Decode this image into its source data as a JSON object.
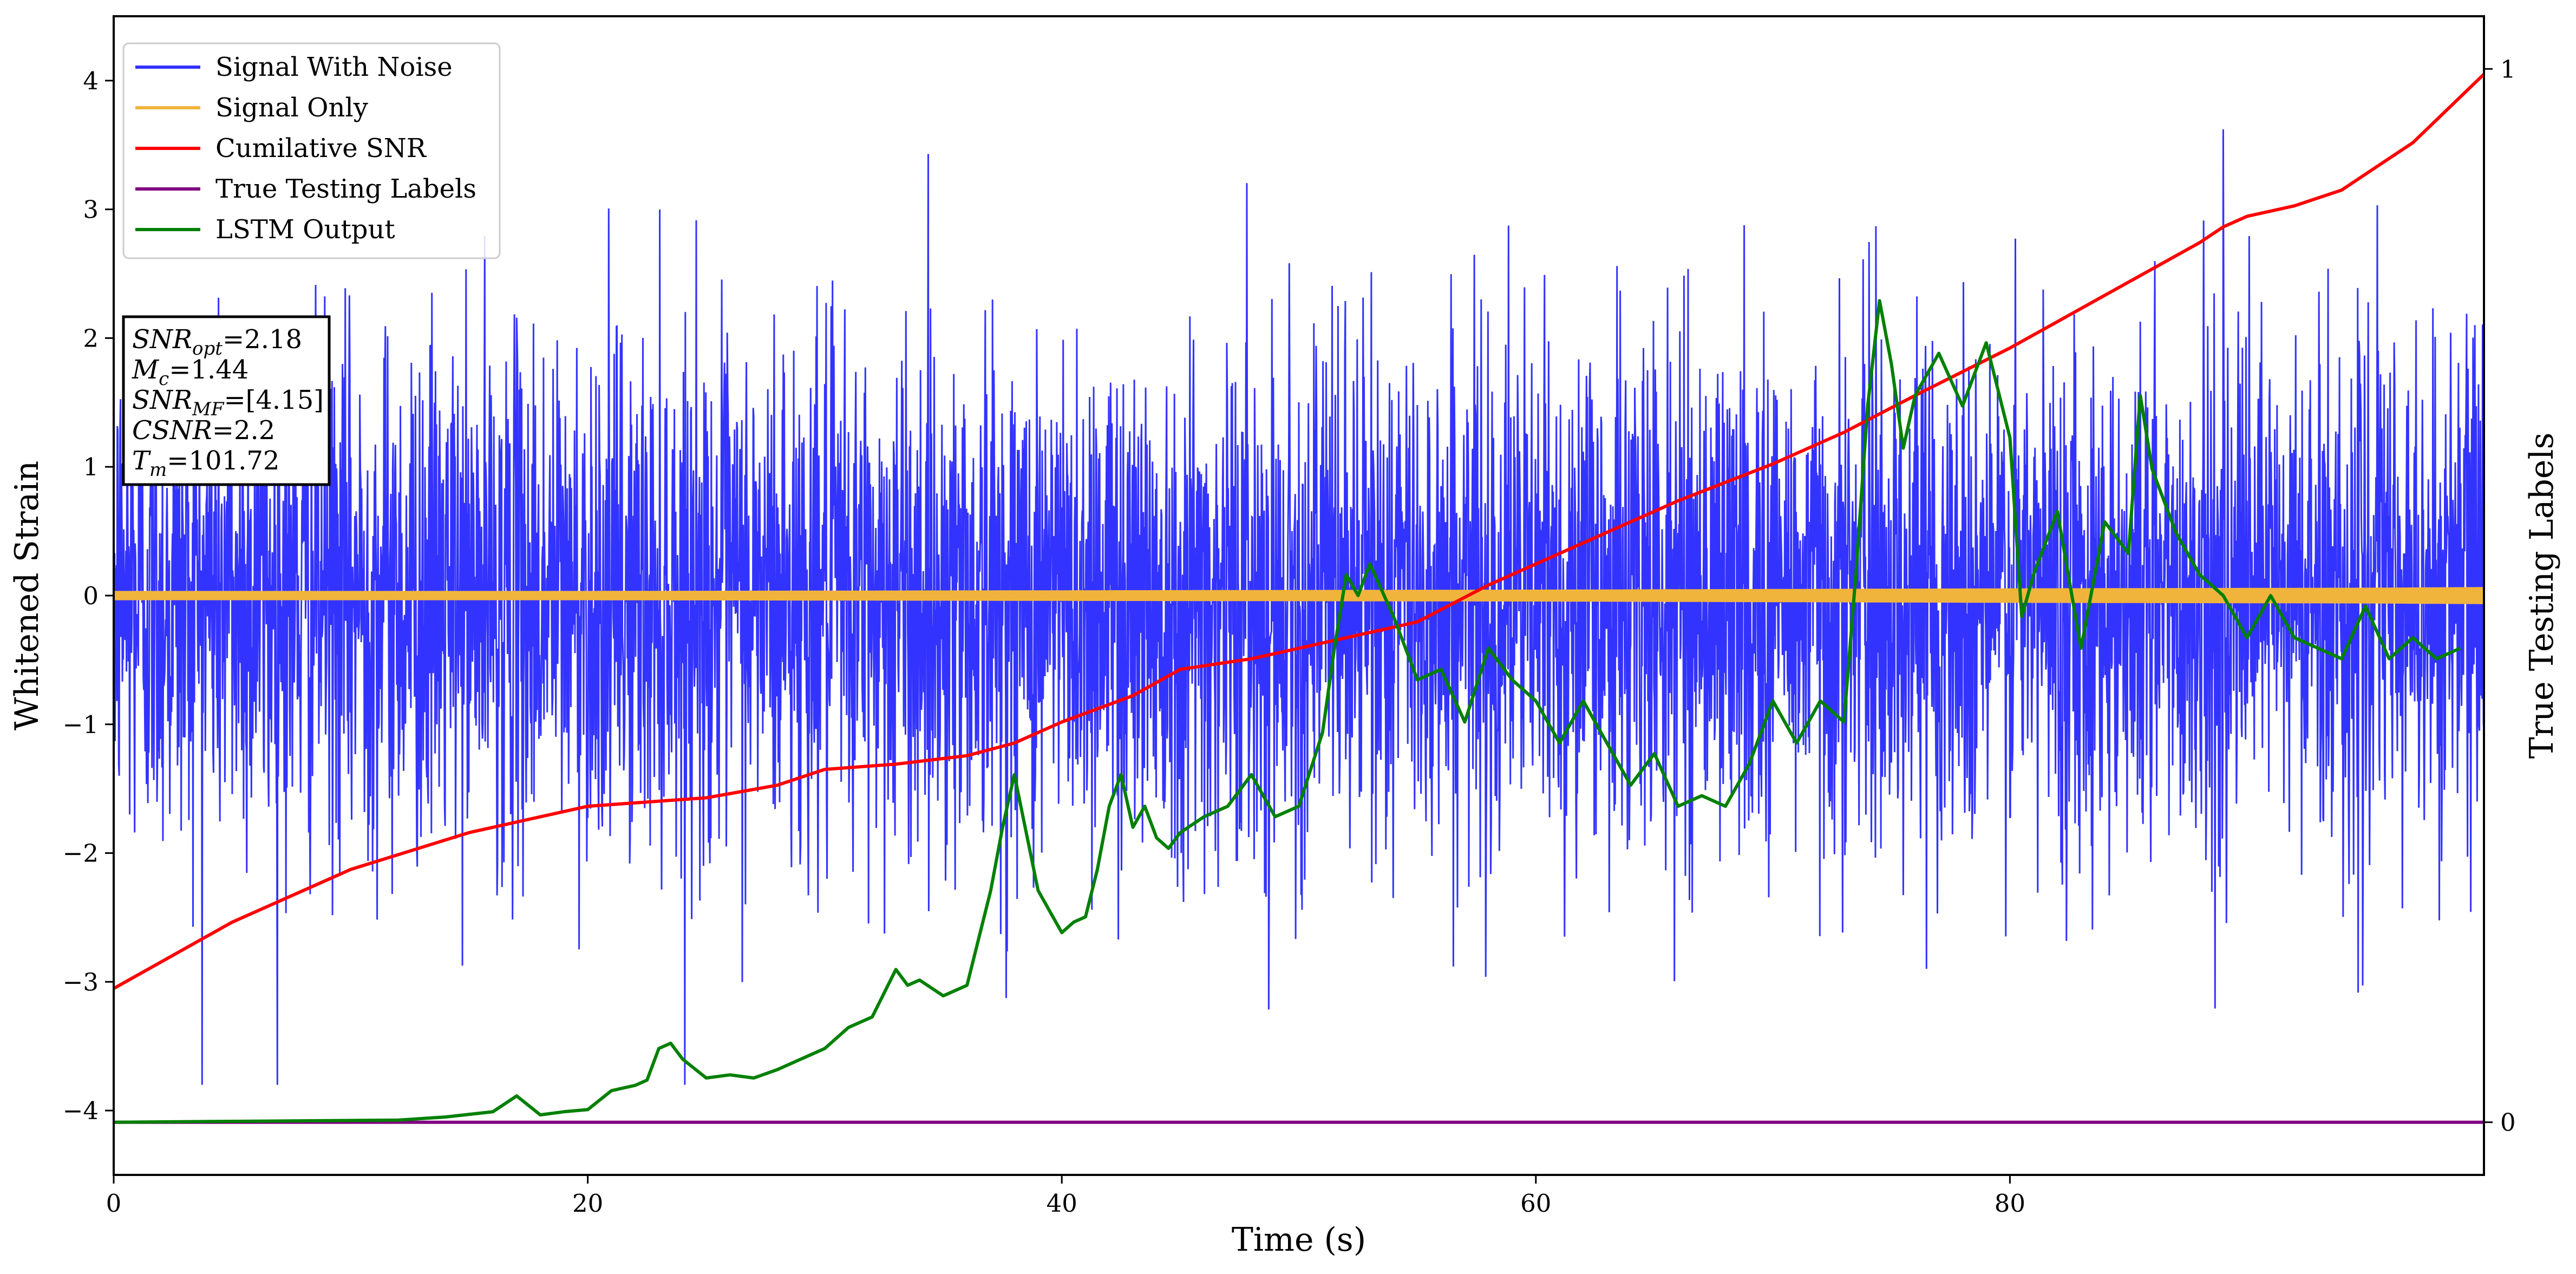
{
  "chart_data": {
    "type": "line",
    "xlabel": "Time (s)",
    "ylabel": "Whitened Strain",
    "y2label": "True Testing Labels",
    "xlim": [
      0,
      100
    ],
    "ylim": [
      -4.5,
      4.5
    ],
    "y2lim": [
      -0.05,
      1.05
    ],
    "xticks": [
      0,
      20,
      40,
      60,
      80
    ],
    "yticks": [
      -4,
      -3,
      -2,
      -1,
      0,
      1,
      2,
      3,
      4
    ],
    "y2ticks": [
      0,
      1
    ],
    "legend_position": "upper-left",
    "series": [
      {
        "name": "Signal With Noise",
        "axis": "left",
        "color": "#3333ff",
        "style": "noise",
        "noise_amplitude": 1.0,
        "noise_peak_max": 3.7,
        "noise_peak_min": -3.8
      },
      {
        "name": "Signal Only",
        "axis": "left",
        "color": "#f0b43c",
        "style": "band",
        "x": [
          0,
          20,
          40,
          60,
          80,
          95,
          100
        ],
        "half_width": [
          0.03,
          0.03,
          0.035,
          0.04,
          0.05,
          0.055,
          0.06
        ]
      },
      {
        "name": "Cumilative SNR",
        "axis": "right",
        "color": "#ff0000",
        "x": [
          0,
          5,
          10,
          15,
          20,
          25,
          28,
          30,
          33,
          36,
          38,
          40,
          43,
          45,
          48,
          50,
          52,
          55,
          58,
          60,
          63,
          66,
          70,
          73,
          76,
          80,
          84,
          88,
          89,
          90,
          92,
          94,
          95,
          97,
          100
        ],
        "y": [
          0.127,
          0.19,
          0.24,
          0.275,
          0.3,
          0.308,
          0.32,
          0.335,
          0.34,
          0.348,
          0.36,
          0.38,
          0.405,
          0.43,
          0.44,
          0.45,
          0.46,
          0.475,
          0.51,
          0.53,
          0.56,
          0.59,
          0.625,
          0.655,
          0.69,
          0.735,
          0.785,
          0.835,
          0.85,
          0.86,
          0.87,
          0.885,
          0.9,
          0.93,
          0.995
        ]
      },
      {
        "name": "True Testing Labels",
        "axis": "right",
        "color": "#800080",
        "x": [
          0,
          100
        ],
        "y": [
          0,
          0
        ]
      },
      {
        "name": "LSTM Output",
        "axis": "right",
        "color": "#008000",
        "x": [
          0,
          12,
          14,
          16,
          17,
          18,
          19,
          20,
          21,
          22,
          22.5,
          23,
          23.5,
          24,
          25,
          26,
          27,
          28,
          29,
          30,
          31,
          32,
          33,
          33.5,
          34,
          35,
          36,
          37,
          37.5,
          38,
          39,
          40,
          40.5,
          41,
          41.5,
          42,
          42.5,
          43,
          43.5,
          44,
          44.5,
          45,
          46,
          47,
          48,
          49,
          50,
          51,
          51.5,
          52,
          52.5,
          53,
          54,
          55,
          56,
          57,
          58,
          59,
          60,
          61,
          62,
          63,
          64,
          65,
          66,
          67,
          68,
          69,
          70,
          71,
          72,
          73,
          73.5,
          74,
          74.5,
          75,
          75.5,
          76,
          77,
          78,
          79,
          80,
          80.5,
          81,
          82,
          83,
          84,
          85,
          85.5,
          86,
          87,
          88,
          89,
          90,
          91,
          92,
          93,
          94,
          95,
          96,
          97,
          98,
          99
        ],
        "y": [
          0,
          0.002,
          0.005,
          0.01,
          0.025,
          0.007,
          0.01,
          0.012,
          0.03,
          0.035,
          0.04,
          0.07,
          0.075,
          0.06,
          0.042,
          0.045,
          0.042,
          0.05,
          0.06,
          0.07,
          0.09,
          0.1,
          0.145,
          0.13,
          0.135,
          0.12,
          0.13,
          0.22,
          0.28,
          0.33,
          0.22,
          0.18,
          0.19,
          0.195,
          0.24,
          0.3,
          0.33,
          0.28,
          0.3,
          0.27,
          0.26,
          0.275,
          0.29,
          0.3,
          0.33,
          0.29,
          0.3,
          0.37,
          0.45,
          0.52,
          0.5,
          0.53,
          0.48,
          0.42,
          0.43,
          0.38,
          0.45,
          0.42,
          0.4,
          0.36,
          0.4,
          0.36,
          0.32,
          0.35,
          0.3,
          0.31,
          0.3,
          0.34,
          0.4,
          0.36,
          0.4,
          0.38,
          0.52,
          0.68,
          0.78,
          0.72,
          0.64,
          0.69,
          0.73,
          0.68,
          0.74,
          0.65,
          0.48,
          0.52,
          0.58,
          0.45,
          0.57,
          0.54,
          0.69,
          0.62,
          0.56,
          0.52,
          0.5,
          0.46,
          0.5,
          0.46,
          0.45,
          0.44,
          0.49,
          0.44,
          0.46,
          0.44,
          0.45
        ]
      }
    ],
    "annotation": [
      {
        "base": "SNR",
        "sub": "opt",
        "value": "=2.18"
      },
      {
        "base": "M",
        "sub": "c",
        "value": "=1.44"
      },
      {
        "base": "SNR",
        "sub": "MF",
        "value": "=[4.15]"
      },
      {
        "base": "CSNR",
        "sub": "",
        "value": "=2.2"
      },
      {
        "base": "T",
        "sub": "m",
        "value": "=101.72"
      }
    ]
  }
}
